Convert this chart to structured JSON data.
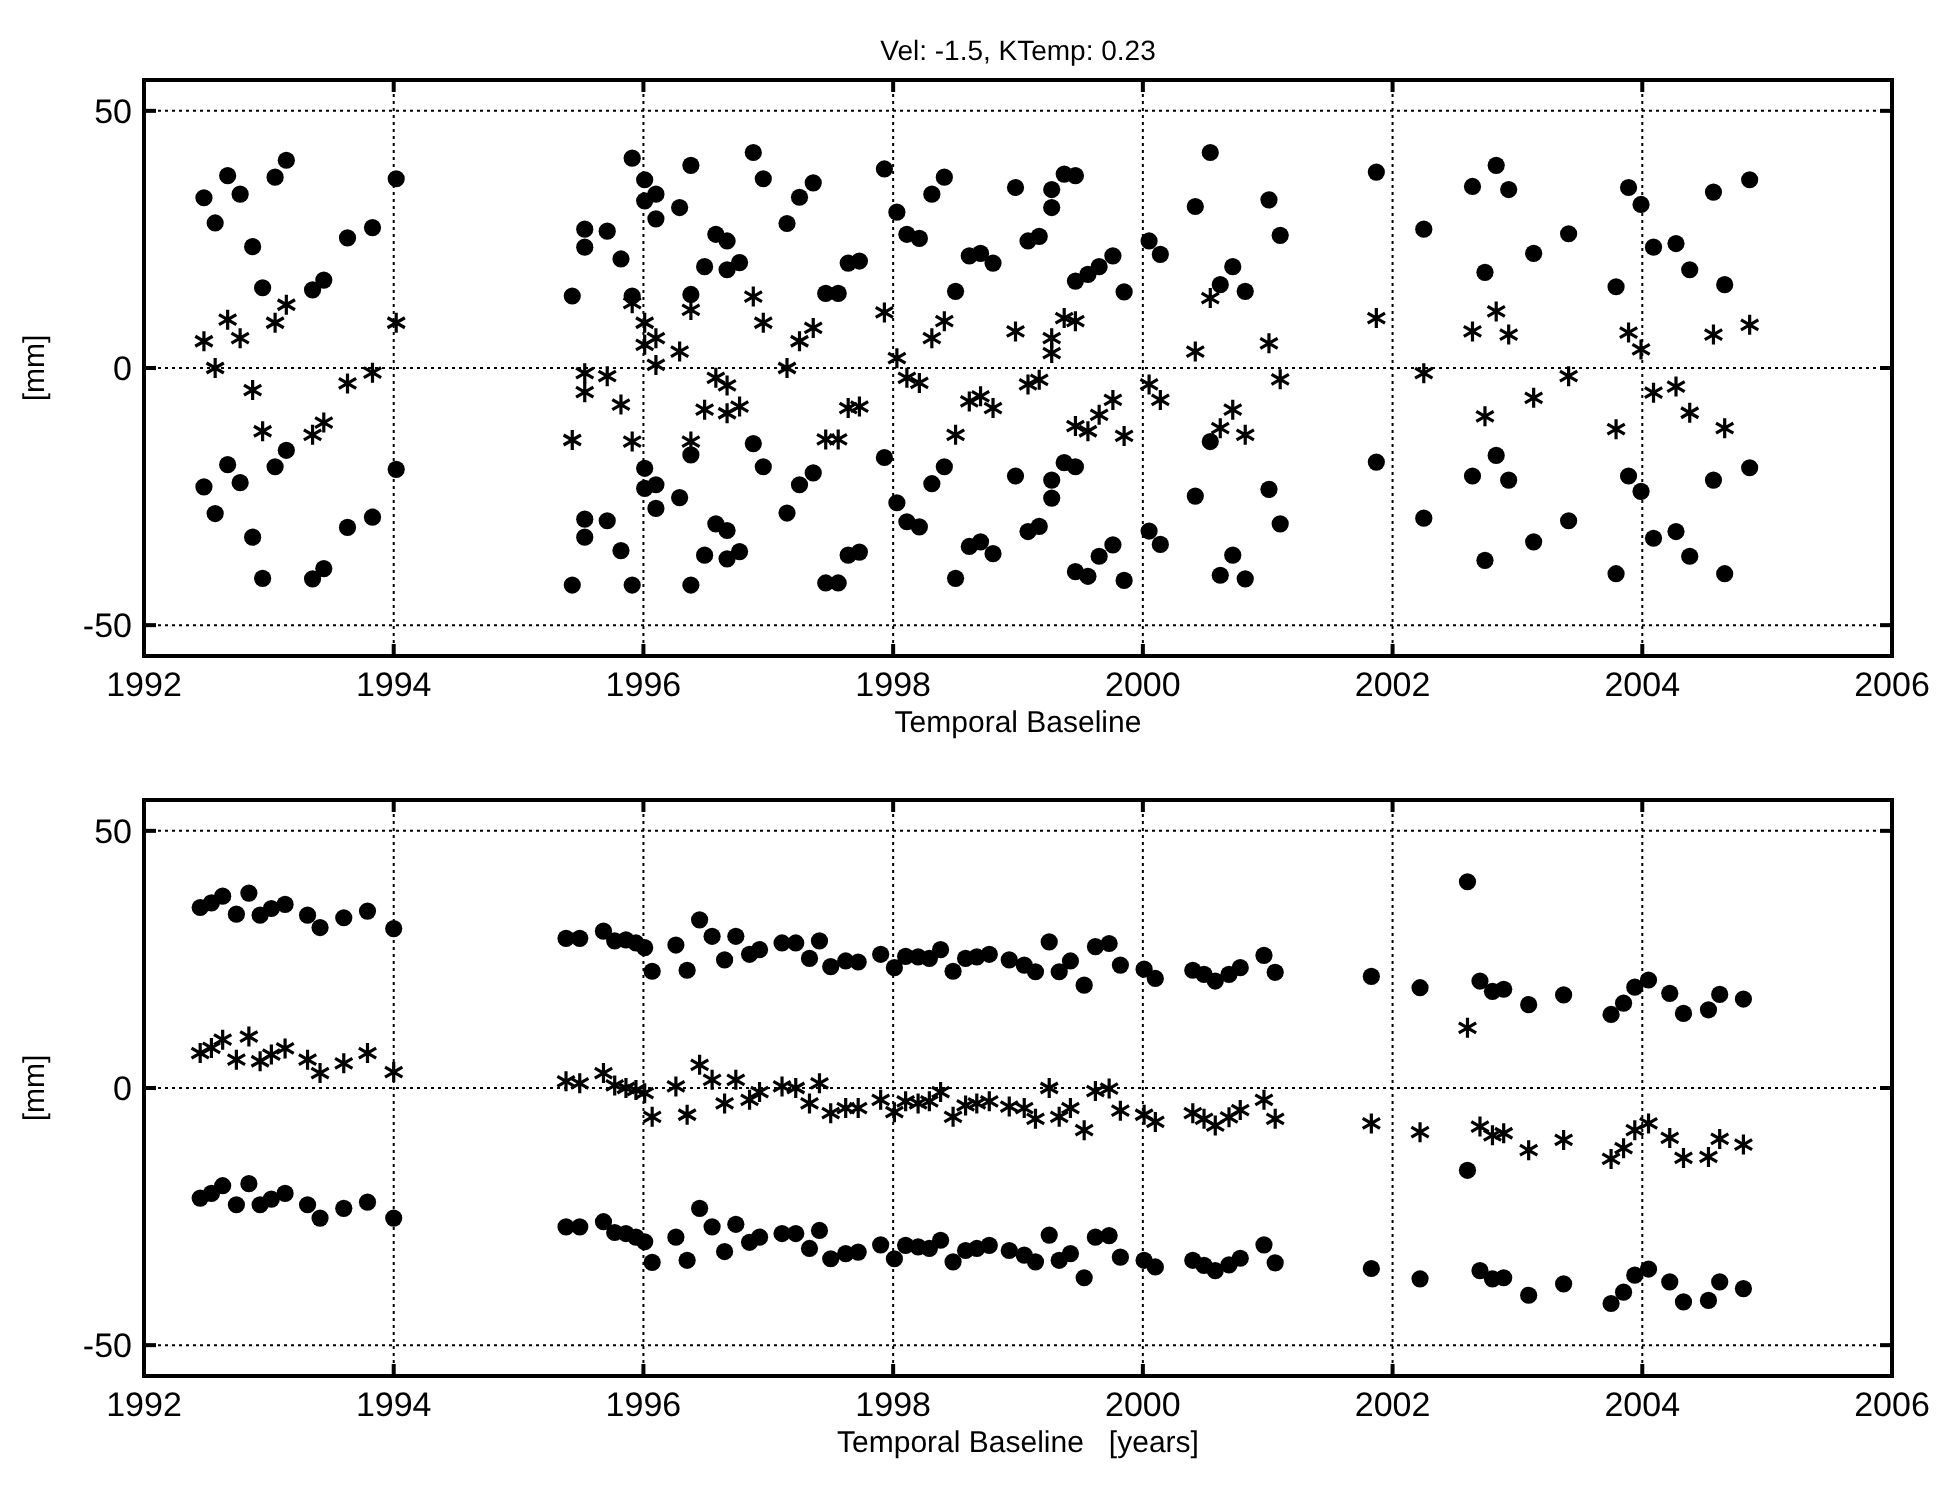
{
  "chart_data": [
    {
      "type": "scatter",
      "title": "Vel: -1.5, KTemp: 0.23",
      "xlabel": "Temporal Baseline",
      "ylabel": "[mm]",
      "xlim": [
        1992,
        2006
      ],
      "ylim": [
        -56,
        56
      ],
      "xticks": [
        1992,
        1994,
        1996,
        1998,
        2000,
        2002,
        2004,
        2006
      ],
      "yticks": [
        -50,
        0,
        50
      ],
      "grid": true,
      "series": [
        {
          "color": "#000000",
          "marker": "circle",
          "x": [
            1992.48,
            1992.57,
            1992.67,
            1992.77,
            1992.87,
            1992.95,
            1993.05,
            1993.14,
            1993.35,
            1993.44,
            1993.63,
            1993.83,
            1994.02,
            1995.43,
            1995.53,
            1995.53,
            1995.71,
            1995.82,
            1995.91,
            1995.91,
            1996.01,
            1996.01,
            1996.1,
            1996.1,
            1996.29,
            1996.38,
            1996.38,
            1996.49,
            1996.58,
            1996.67,
            1996.67,
            1996.77,
            1996.88,
            1996.96,
            1997.15,
            1997.25,
            1997.36,
            1997.46,
            1997.56,
            1997.64,
            1997.73,
            1997.93,
            1998.03,
            1998.11,
            1998.21,
            1998.31,
            1998.41,
            1998.5,
            1998.61,
            1998.7,
            1998.8,
            1998.98,
            1999.08,
            1999.17,
            1999.27,
            1999.27,
            1999.37,
            1999.46,
            1999.46,
            1999.56,
            1999.65,
            1999.76,
            1999.85,
            2000.05,
            2000.14,
            2000.42,
            2000.54,
            2000.62,
            2000.72,
            2000.82,
            2001.01,
            2001.1,
            2001.87,
            2002.25,
            2002.64,
            2002.74,
            2002.83,
            2002.93,
            2003.13,
            2003.41,
            2003.79,
            2003.89,
            2003.99,
            2004.09,
            2004.27,
            2004.38,
            2004.57,
            2004.66,
            2004.86
          ],
          "values": [
            33.1,
            28.2,
            37.4,
            33.8,
            23.6,
            15.6,
            37.1,
            40.4,
            15.2,
            17.1,
            25.3,
            27.3,
            36.8,
            14.0,
            27.0,
            23.5,
            26.6,
            21.2,
            40.8,
            14.0,
            36.6,
            32.5,
            33.8,
            29.0,
            31.2,
            39.4,
            14.3,
            19.7,
            26.0,
            24.7,
            19.1,
            20.5,
            41.9,
            36.8,
            28.1,
            33.2,
            36.0,
            14.5,
            14.5,
            20.4,
            20.8,
            38.7,
            30.3,
            26.0,
            25.2,
            33.8,
            37.1,
            14.9,
            21.8,
            22.3,
            20.4,
            35.1,
            24.7,
            25.6,
            34.7,
            31.2,
            37.7,
            37.4,
            16.9,
            18.2,
            19.7,
            21.8,
            14.8,
            24.7,
            22.1,
            31.4,
            41.9,
            16.2,
            19.7,
            14.9,
            32.7,
            25.8,
            38.1,
            27.0,
            35.3,
            18.6,
            39.4,
            34.7,
            22.3,
            26.1,
            15.8,
            35.1,
            31.8,
            23.5,
            24.2,
            19.1,
            34.2,
            16.2,
            36.6
          ]
        },
        {
          "color": "#000000",
          "marker": "cross",
          "x": [
            1992.48,
            1992.57,
            1992.67,
            1992.77,
            1992.87,
            1992.95,
            1993.05,
            1993.14,
            1993.35,
            1993.44,
            1993.63,
            1993.83,
            1994.02,
            1995.43,
            1995.53,
            1995.53,
            1995.71,
            1995.82,
            1995.91,
            1995.91,
            1996.01,
            1996.01,
            1996.1,
            1996.1,
            1996.29,
            1996.38,
            1996.38,
            1996.49,
            1996.58,
            1996.67,
            1996.67,
            1996.77,
            1996.88,
            1996.96,
            1997.15,
            1997.25,
            1997.36,
            1997.46,
            1997.56,
            1997.64,
            1997.73,
            1997.93,
            1998.03,
            1998.11,
            1998.21,
            1998.31,
            1998.41,
            1998.5,
            1998.61,
            1998.7,
            1998.8,
            1998.98,
            1999.08,
            1999.17,
            1999.27,
            1999.27,
            1999.37,
            1999.46,
            1999.46,
            1999.56,
            1999.65,
            1999.76,
            1999.85,
            2000.05,
            2000.14,
            2000.42,
            2000.54,
            2000.62,
            2000.72,
            2000.82,
            2001.01,
            2001.1,
            2001.87,
            2002.25,
            2002.64,
            2002.74,
            2002.83,
            2002.93,
            2003.13,
            2003.41,
            2003.79,
            2003.89,
            2003.99,
            2004.09,
            2004.27,
            2004.38,
            2004.57,
            2004.66,
            2004.86
          ],
          "values": [
            5.2,
            0,
            9.4,
            5.8,
            -4.3,
            -12.3,
            8.8,
            12.3,
            -13.0,
            -10.6,
            -3.0,
            -0.9,
            8.8,
            -14.0,
            -1.0,
            -4.7,
            -1.6,
            -7.1,
            -14.3,
            12.6,
            8.8,
            4.5,
            5.8,
            0.6,
            3.2,
            -14.3,
            11.3,
            -8.1,
            -1.9,
            -3.4,
            -8.8,
            -7.5,
            13.9,
            8.8,
            0,
            5.2,
            7.8,
            -13.9,
            -13.9,
            -7.8,
            -7.5,
            10.8,
            1.9,
            -1.9,
            -2.9,
            5.8,
            9.1,
            -13.0,
            -6.5,
            -5.5,
            -7.8,
            7.1,
            -3.2,
            -2.3,
            5.8,
            2.9,
            9.7,
            9.1,
            -11.3,
            -12.3,
            -9.1,
            -6.2,
            -13.2,
            -3.2,
            -6.2,
            3.2,
            13.6,
            -11.7,
            -8.1,
            -13.0,
            4.8,
            -2.2,
            9.7,
            -1.0,
            7.1,
            -9.4,
            11.0,
            6.5,
            -5.8,
            -1.6,
            -11.9,
            6.9,
            3.6,
            -4.8,
            -3.6,
            -8.7,
            6.5,
            -11.7,
            8.4
          ]
        },
        {
          "color": "#000000",
          "marker": "circle",
          "x": [
            1992.48,
            1992.57,
            1992.67,
            1992.77,
            1992.87,
            1992.95,
            1993.05,
            1993.14,
            1993.35,
            1993.44,
            1993.63,
            1993.83,
            1994.02,
            1995.43,
            1995.53,
            1995.53,
            1995.71,
            1995.82,
            1995.91,
            1996.01,
            1996.01,
            1996.1,
            1996.1,
            1996.29,
            1996.38,
            1996.38,
            1996.49,
            1996.58,
            1996.67,
            1996.67,
            1996.77,
            1996.88,
            1996.96,
            1997.15,
            1997.25,
            1997.36,
            1997.46,
            1997.56,
            1997.64,
            1997.73,
            1997.93,
            1998.03,
            1998.11,
            1998.21,
            1998.31,
            1998.41,
            1998.5,
            1998.61,
            1998.7,
            1998.8,
            1998.98,
            1999.08,
            1999.17,
            1999.27,
            1999.27,
            1999.37,
            1999.46,
            1999.46,
            1999.56,
            1999.65,
            1999.76,
            1999.85,
            2000.05,
            2000.14,
            2000.42,
            2000.54,
            2000.62,
            2000.72,
            2000.82,
            2001.01,
            2001.1,
            2001.87,
            2002.25,
            2002.64,
            2002.74,
            2002.83,
            2002.93,
            2003.13,
            2003.41,
            2003.79,
            2003.89,
            2003.99,
            2004.09,
            2004.27,
            2004.38,
            2004.57,
            2004.66,
            2004.86
          ],
          "values": [
            -23.1,
            -28.3,
            -18.8,
            -22.3,
            -32.9,
            -40.9,
            -19.2,
            -16.0,
            -41.0,
            -39.0,
            -31.0,
            -29.0,
            -19.7,
            -42.2,
            -29.4,
            -32.9,
            -29.7,
            -35.5,
            -42.2,
            -19.5,
            -23.4,
            -22.7,
            -27.3,
            -25.2,
            -42.2,
            -16.9,
            -36.4,
            -30.3,
            -31.6,
            -37.1,
            -35.7,
            -14.7,
            -19.2,
            -28.2,
            -22.7,
            -20.4,
            -41.8,
            -41.8,
            -36.4,
            -35.8,
            -17.4,
            -26.2,
            -29.9,
            -30.9,
            -22.5,
            -19.2,
            -40.9,
            -34.7,
            -33.8,
            -36.1,
            -21.0,
            -31.8,
            -30.8,
            -21.8,
            -25.3,
            -18.4,
            -19.2,
            -39.6,
            -40.5,
            -36.6,
            -34.4,
            -41.3,
            -31.7,
            -34.3,
            -24.9,
            -14.3,
            -40.3,
            -36.4,
            -41.0,
            -23.6,
            -30.3,
            -18.3,
            -29.2,
            -21.0,
            -37.4,
            -17.0,
            -21.8,
            -33.8,
            -29.7,
            -40.0,
            -21.0,
            -24.0,
            -33.1,
            -31.8,
            -36.6,
            -21.8,
            -40.0,
            -19.4
          ]
        }
      ]
    },
    {
      "type": "scatter",
      "xlabel": "Temporal Baseline   [years]",
      "ylabel": "[mm]",
      "xlim": [
        1992,
        2006
      ],
      "ylim": [
        -56,
        56
      ],
      "xticks": [
        1992,
        1994,
        1996,
        1998,
        2000,
        2002,
        2004,
        2006
      ],
      "yticks": [
        -50,
        0,
        50
      ],
      "grid": true,
      "series": [
        {
          "color": "#000000",
          "marker": "circle",
          "x": [
            1992.45,
            1992.54,
            1992.63,
            1992.74,
            1992.84,
            1992.93,
            1993.02,
            1993.13,
            1993.31,
            1993.41,
            1993.6,
            1993.79,
            1994.0,
            1995.38,
            1995.49,
            1995.68,
            1995.77,
            1995.86,
            1995.94,
            1996.01,
            1996.07,
            1996.26,
            1996.35,
            1996.45,
            1996.55,
            1996.65,
            1996.74,
            1996.85,
            1996.93,
            1997.11,
            1997.22,
            1997.33,
            1997.41,
            1997.5,
            1997.62,
            1997.72,
            1997.9,
            1998.01,
            1998.1,
            1998.2,
            1998.29,
            1998.38,
            1998.48,
            1998.58,
            1998.67,
            1998.77,
            1998.93,
            1999.05,
            1999.14,
            1999.25,
            1999.33,
            1999.42,
            1999.53,
            1999.62,
            1999.73,
            1999.82,
            2000.01,
            2000.1,
            2000.4,
            2000.49,
            2000.58,
            2000.69,
            2000.78,
            2000.97,
            2001.06,
            2001.83,
            2002.22,
            2002.6,
            2002.7,
            2002.8,
            2002.89,
            2003.09,
            2003.37,
            2003.75,
            2003.85,
            2003.94,
            2004.05,
            2004.22,
            2004.33,
            2004.53,
            2004.62,
            2004.81
          ],
          "values": [
            35.1,
            36.0,
            37.3,
            33.8,
            37.9,
            33.6,
            34.9,
            35.7,
            33.6,
            31.2,
            33.1,
            34.4,
            31.0,
            29.1,
            29.1,
            30.5,
            28.6,
            28.8,
            28.2,
            27.3,
            22.7,
            27.8,
            22.9,
            32.7,
            29.5,
            24.9,
            29.5,
            26.0,
            26.9,
            28.2,
            28.2,
            25.2,
            28.6,
            23.6,
            24.7,
            24.5,
            26.0,
            23.4,
            25.6,
            25.5,
            25.2,
            26.9,
            22.7,
            25.2,
            25.5,
            26.0,
            24.9,
            23.9,
            22.6,
            28.4,
            22.6,
            24.7,
            20.0,
            27.5,
            28.1,
            23.9,
            23.1,
            21.3,
            22.9,
            22.1,
            20.8,
            22.1,
            23.4,
            25.8,
            22.5,
            21.7,
            19.5,
            40.1,
            20.8,
            18.8,
            19.2,
            16.2,
            18.1,
            14.3,
            16.5,
            19.6,
            21.0,
            18.4,
            14.5,
            15.2,
            18.2,
            17.3
          ]
        },
        {
          "color": "#000000",
          "marker": "cross",
          "x": [
            1992.45,
            1992.54,
            1992.63,
            1992.74,
            1992.84,
            1992.93,
            1993.02,
            1993.13,
            1993.31,
            1993.41,
            1993.6,
            1993.79,
            1994.0,
            1995.38,
            1995.49,
            1995.68,
            1995.77,
            1995.86,
            1995.94,
            1996.01,
            1996.07,
            1996.26,
            1996.35,
            1996.45,
            1996.55,
            1996.65,
            1996.74,
            1996.85,
            1996.93,
            1997.11,
            1997.22,
            1997.33,
            1997.41,
            1997.5,
            1997.62,
            1997.72,
            1997.9,
            1998.01,
            1998.1,
            1998.2,
            1998.29,
            1998.38,
            1998.48,
            1998.58,
            1998.67,
            1998.77,
            1998.93,
            1999.05,
            1999.14,
            1999.25,
            1999.33,
            1999.42,
            1999.53,
            1999.62,
            1999.73,
            1999.82,
            2000.01,
            2000.1,
            2000.4,
            2000.49,
            2000.58,
            2000.69,
            2000.78,
            2000.97,
            2001.06,
            2001.83,
            2002.22,
            2002.6,
            2002.7,
            2002.8,
            2002.89,
            2003.09,
            2003.37,
            2003.75,
            2003.85,
            2003.94,
            2004.05,
            2004.22,
            2004.33,
            2004.53,
            2004.62,
            2004.81
          ],
          "values": [
            6.8,
            7.8,
            9.4,
            5.5,
            10.0,
            5.2,
            6.5,
            7.7,
            5.5,
            2.9,
            4.8,
            6.8,
            3.1,
            1.3,
            0.9,
            2.9,
            0.5,
            0,
            -0.4,
            -1.0,
            -5.6,
            0.3,
            -5.2,
            4.5,
            1.6,
            -3.0,
            1.6,
            -2.3,
            -0.8,
            0.3,
            0,
            -3.0,
            0.9,
            -4.9,
            -3.9,
            -3.9,
            -2.3,
            -4.7,
            -2.6,
            -3.0,
            -2.6,
            -0.8,
            -5.6,
            -3.4,
            -3.0,
            -2.6,
            -3.6,
            -3.9,
            -6.0,
            0,
            -5.6,
            -3.9,
            -8.2,
            -0.6,
            -0.1,
            -4.4,
            -5.2,
            -6.6,
            -4.9,
            -6.0,
            -7.3,
            -5.7,
            -4.3,
            -2.3,
            -6.0,
            -6.9,
            -8.6,
            11.7,
            -7.5,
            -9.2,
            -8.8,
            -12.1,
            -10.1,
            -13.8,
            -11.7,
            -8.2,
            -6.9,
            -9.7,
            -13.6,
            -13.4,
            -9.9,
            -11.0
          ]
        },
        {
          "color": "#000000",
          "marker": "circle",
          "x": [
            1992.45,
            1992.54,
            1992.63,
            1992.74,
            1992.84,
            1992.93,
            1993.02,
            1993.13,
            1993.31,
            1993.41,
            1993.6,
            1993.79,
            1994.0,
            1995.38,
            1995.49,
            1995.68,
            1995.77,
            1995.86,
            1995.94,
            1996.01,
            1996.07,
            1996.26,
            1996.35,
            1996.45,
            1996.55,
            1996.65,
            1996.74,
            1996.85,
            1996.93,
            1997.11,
            1997.22,
            1997.33,
            1997.41,
            1997.5,
            1997.62,
            1997.72,
            1997.9,
            1998.01,
            1998.1,
            1998.2,
            1998.29,
            1998.38,
            1998.48,
            1998.58,
            1998.67,
            1998.77,
            1998.93,
            1999.05,
            1999.14,
            1999.25,
            1999.33,
            1999.42,
            1999.53,
            1999.62,
            1999.73,
            1999.82,
            2000.01,
            2000.1,
            2000.4,
            2000.49,
            2000.58,
            2000.69,
            2000.78,
            2000.97,
            2001.06,
            2001.83,
            2002.22,
            2002.6,
            2002.7,
            2002.8,
            2002.89,
            2003.09,
            2003.37,
            2003.75,
            2003.85,
            2003.94,
            2004.05,
            2004.22,
            2004.33,
            2004.53,
            2004.62,
            2004.81
          ],
          "values": [
            -21.4,
            -20.5,
            -19.0,
            -22.7,
            -18.6,
            -22.7,
            -21.6,
            -20.5,
            -22.7,
            -25.3,
            -23.4,
            -22.2,
            -25.3,
            -27.0,
            -27.0,
            -26.0,
            -28.1,
            -28.3,
            -29.0,
            -29.9,
            -33.9,
            -29.0,
            -33.5,
            -23.4,
            -27.0,
            -31.8,
            -26.5,
            -30.0,
            -29.0,
            -28.3,
            -28.3,
            -31.2,
            -27.7,
            -33.2,
            -32.2,
            -31.9,
            -30.5,
            -33.2,
            -30.6,
            -30.9,
            -31.2,
            -29.6,
            -33.8,
            -31.6,
            -31.2,
            -30.6,
            -31.6,
            -32.5,
            -33.8,
            -28.6,
            -33.5,
            -32.2,
            -36.9,
            -29.0,
            -28.7,
            -32.9,
            -33.5,
            -34.8,
            -33.5,
            -34.5,
            -35.5,
            -34.4,
            -33.1,
            -30.5,
            -34.0,
            -35.1,
            -37.1,
            -16.0,
            -35.5,
            -37.1,
            -36.9,
            -40.3,
            -38.1,
            -41.9,
            -39.7,
            -36.4,
            -35.2,
            -37.7,
            -41.6,
            -41.3,
            -37.7,
            -39.0
          ]
        }
      ]
    }
  ]
}
